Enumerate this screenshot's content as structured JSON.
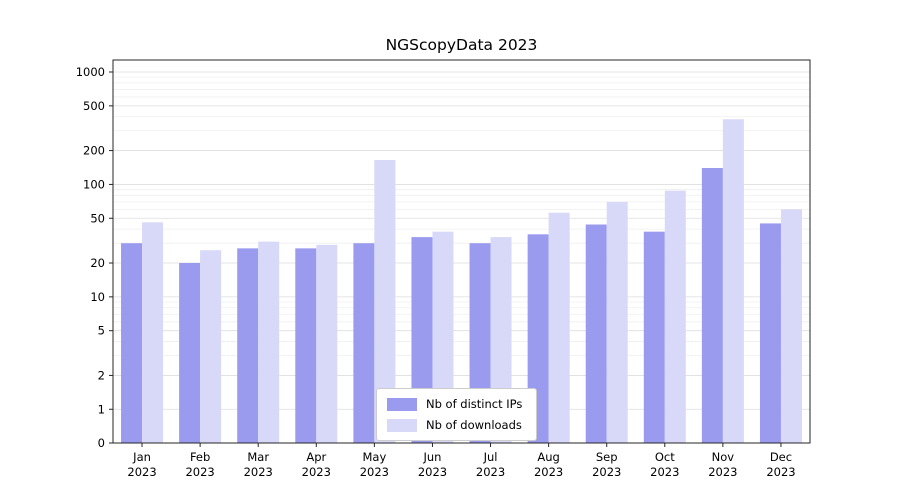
{
  "title": "NGScopyData 2023",
  "chart_data": {
    "type": "bar",
    "title": "NGScopyData 2023",
    "xlabel": "",
    "ylabel": "",
    "yscale": "symlog",
    "ylim": [
      0,
      1000
    ],
    "y_ticks": [
      0,
      1,
      2,
      5,
      10,
      20,
      50,
      100,
      200,
      500,
      1000
    ],
    "grid": true,
    "legend_position": "lower center",
    "categories": [
      "Jan 2023",
      "Feb 2023",
      "Mar 2023",
      "Apr 2023",
      "May 2023",
      "Jun 2023",
      "Jul 2023",
      "Aug 2023",
      "Sep 2023",
      "Oct 2023",
      "Nov 2023",
      "Dec 2023"
    ],
    "series": [
      {
        "name": "Nb of distinct IPs",
        "color": "#9a9aee",
        "values": [
          30,
          20,
          27,
          27,
          30,
          34,
          30,
          36,
          44,
          38,
          140,
          45
        ]
      },
      {
        "name": "Nb of downloads",
        "color": "#d8d8f8",
        "values": [
          46,
          26,
          31,
          29,
          165,
          38,
          34,
          56,
          70,
          88,
          380,
          60
        ]
      }
    ]
  }
}
